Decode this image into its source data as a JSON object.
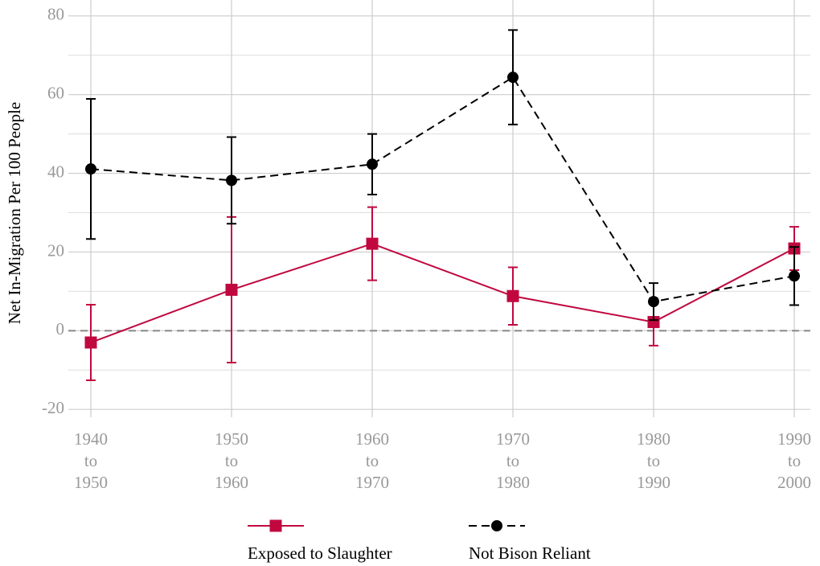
{
  "chart_data": {
    "type": "line",
    "y_label": "Net In-Migration Per 100 People",
    "categories": [
      [
        "1940",
        "to",
        "1950"
      ],
      [
        "1950",
        "to",
        "1960"
      ],
      [
        "1960",
        "to",
        "1970"
      ],
      [
        "1970",
        "to",
        "1980"
      ],
      [
        "1980",
        "to",
        "1990"
      ],
      [
        "1990",
        "to",
        "2000"
      ]
    ],
    "series": [
      {
        "name": "Exposed to Slaughter",
        "color": "#c0083f",
        "marker": "square",
        "dash": "solid",
        "values": [
          -3.0,
          10.4,
          22.1,
          8.8,
          2.2,
          20.9
        ],
        "errors": [
          9.6,
          18.5,
          9.3,
          7.3,
          6.0,
          5.5
        ]
      },
      {
        "name": "Not Bison Reliant",
        "color": "#000000",
        "marker": "circle",
        "dash": "dashed",
        "values": [
          41.1,
          38.2,
          42.3,
          64.4,
          7.4,
          13.9
        ],
        "errors": [
          17.8,
          11.0,
          7.7,
          12.0,
          4.7,
          7.4
        ]
      }
    ],
    "ylim": [
      -22,
      82
    ],
    "yticks": [
      -20,
      0,
      20,
      40,
      60,
      80
    ],
    "yminor": [
      -10,
      10,
      30,
      50,
      70
    ],
    "hline": 0,
    "grid": true,
    "legend": "bottom"
  }
}
